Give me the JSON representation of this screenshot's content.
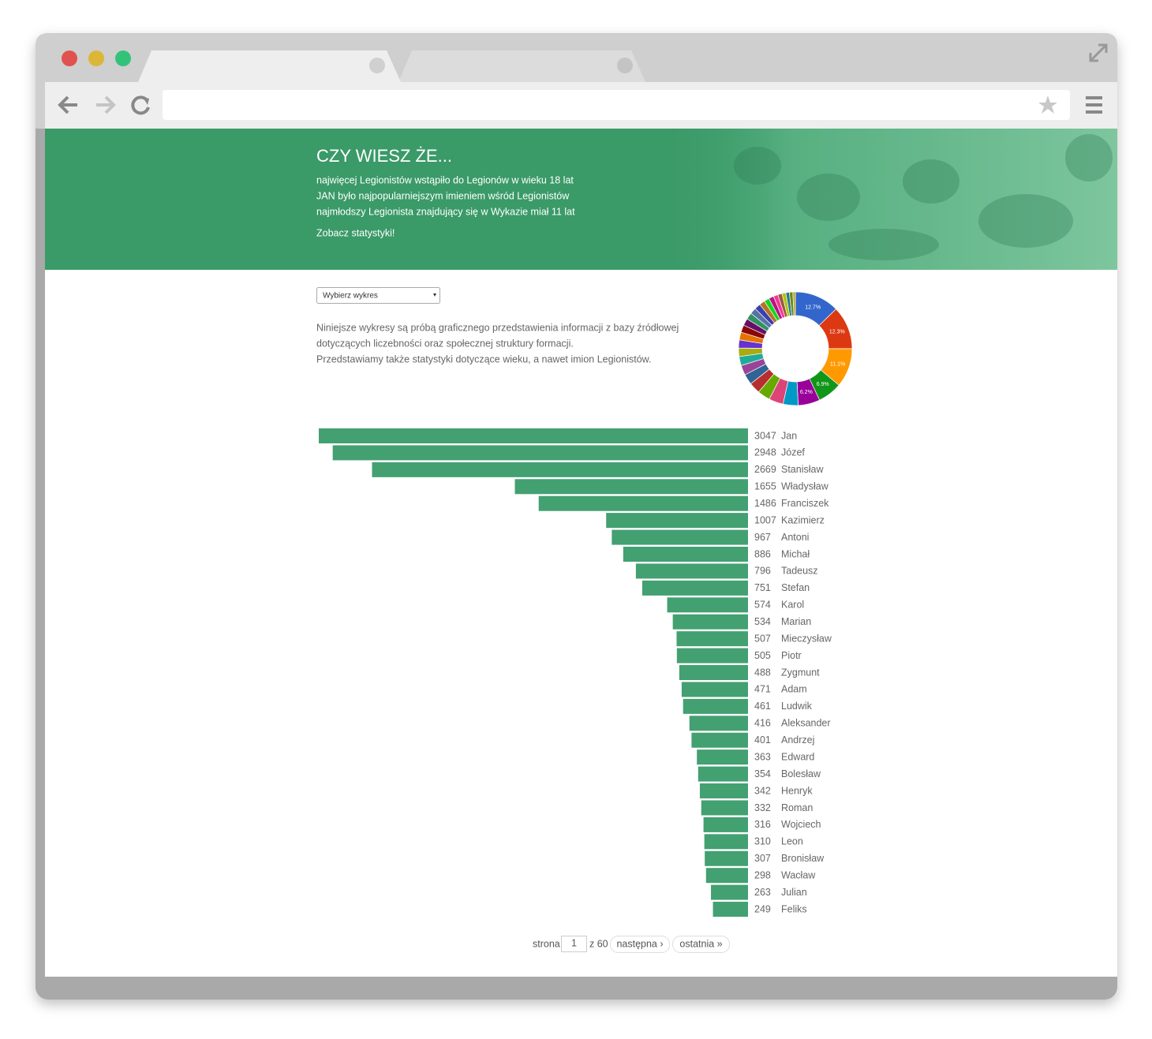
{
  "header": {
    "title": "CZY WIESZ ŻE...",
    "facts": [
      "najwięcej Legionistów wstąpiło do Legionów w wieku 18 lat",
      "JAN było najpopularniejszym imieniem wśród Legionistów",
      "najmłodszy Legionista znajdujący się w Wykazie miał 11 lat"
    ],
    "link": "Zobacz statystyki!"
  },
  "select": "Wybierz wykres",
  "description": [
    "Niniejsze wykresy są próbą graficznego przedstawienia informacji z bazy źródłowej",
    "dotyczących liczebności oraz społecznej struktury formacji.",
    "Przedstawiamy także statystyki dotyczące wieku, a nawet imion Legionistów."
  ],
  "chart_data": [
    {
      "type": "bar",
      "orientation": "horizontal",
      "color": "#43a071",
      "categories": [
        "Jan",
        "Józef",
        "Stanisław",
        "Władysław",
        "Franciszek",
        "Kazimierz",
        "Antoni",
        "Michał",
        "Tadeusz",
        "Stefan",
        "Karol",
        "Marian",
        "Mieczysław",
        "Piotr",
        "Zygmunt",
        "Adam",
        "Ludwik",
        "Aleksander",
        "Andrzej",
        "Edward",
        "Bolesław",
        "Henryk",
        "Roman",
        "Wojciech",
        "Leon",
        "Bronisław",
        "Wacław",
        "Julian",
        "Feliks"
      ],
      "values": [
        3047,
        2948,
        2669,
        1655,
        1486,
        1007,
        967,
        886,
        796,
        751,
        574,
        534,
        507,
        505,
        488,
        471,
        461,
        416,
        401,
        363,
        354,
        342,
        332,
        316,
        310,
        307,
        298,
        263,
        249
      ]
    },
    {
      "type": "pie",
      "donut": true,
      "values": [
        12.7,
        12.3,
        11.1,
        6.9,
        6.2,
        4.3,
        4.1,
        3.6,
        3.2,
        3.0,
        2.8,
        2.6,
        2.4,
        2.3,
        2.2,
        2.1,
        2.0,
        1.9,
        1.8,
        1.7,
        1.6,
        1.5,
        1.4,
        1.3,
        1.2,
        1.1,
        1.0,
        1.0,
        0.7
      ],
      "value_labels": [
        "12.7%",
        "12.3%",
        "11.1%",
        "6.9%",
        "6.2%",
        null,
        null,
        null,
        null,
        null,
        null,
        null,
        null,
        null,
        null,
        null,
        null,
        null,
        null,
        null,
        null,
        null,
        null,
        null,
        null,
        null,
        null,
        null,
        null
      ],
      "colors": [
        "#3366cc",
        "#dc3912",
        "#ff9900",
        "#109618",
        "#990099",
        "#0099c6",
        "#dd4477",
        "#66aa00",
        "#b82e2e",
        "#316395",
        "#994499",
        "#22aa99",
        "#aaaa11",
        "#6633cc",
        "#e67300",
        "#8b0707",
        "#651067",
        "#329262",
        "#5574a6",
        "#3b3eac",
        "#b77322",
        "#16d620",
        "#b91383",
        "#f4359e",
        "#9c5935",
        "#a9c413",
        "#2a778d",
        "#668d1c",
        "#bea413"
      ]
    }
  ],
  "pagination": {
    "prefix": "strona",
    "page": "1",
    "of": "z 60",
    "next": "następna ›",
    "last": "ostatnia »"
  }
}
